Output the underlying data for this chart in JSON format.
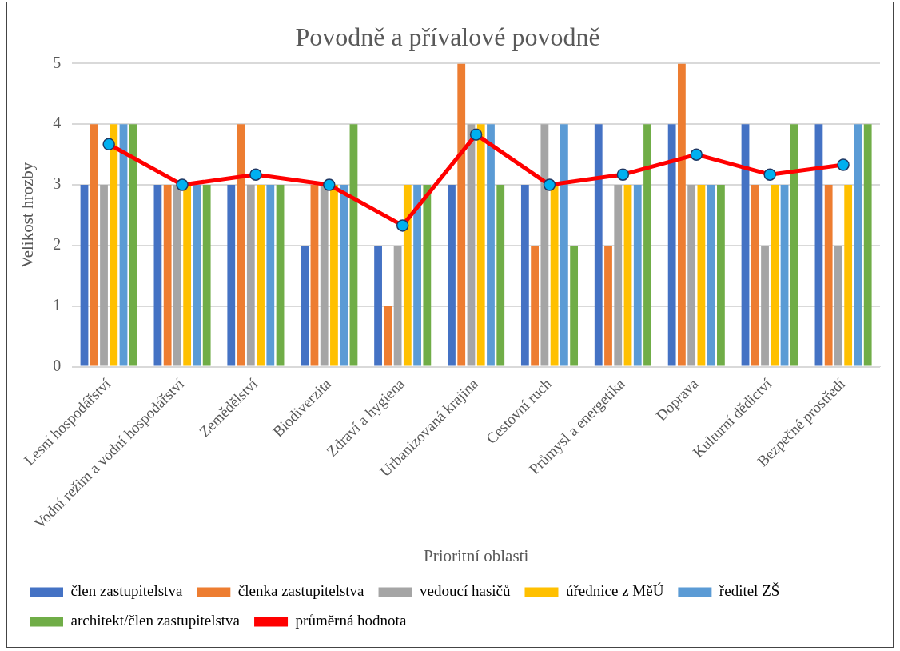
{
  "chart_data": {
    "type": "bar",
    "title": "Povodně a přívalové povodně",
    "xlabel": "Prioritní oblasti",
    "ylabel": "Velikost hrozby",
    "categories": [
      "Lesní hospodářství",
      "Vodní režim a vodní hospodářství",
      "Zemědělství",
      "Biodiverzita",
      "Zdraví a hygiena",
      "Urbanizovaná krajina",
      "Cestovní ruch",
      "Průmysl a energetika",
      "Doprava",
      "Kulturní dědictví",
      "Bezpečné prostředí"
    ],
    "series": [
      {
        "name": "člen zastupitelstva",
        "color": "#4472c4",
        "values": [
          3,
          3,
          3,
          2,
          2,
          3,
          3,
          4,
          4,
          4,
          4
        ]
      },
      {
        "name": "členka zastupitelstva",
        "color": "#ed7d31",
        "values": [
          4,
          3,
          4,
          3,
          1,
          5,
          2,
          2,
          5,
          3,
          3
        ]
      },
      {
        "name": "vedoucí hasičů",
        "color": "#a5a5a5",
        "values": [
          3,
          3,
          3,
          3,
          2,
          4,
          4,
          3,
          3,
          2,
          2
        ]
      },
      {
        "name": "úřednice z MěÚ",
        "color": "#ffc000",
        "values": [
          4,
          3,
          3,
          3,
          3,
          4,
          3,
          3,
          3,
          3,
          3
        ]
      },
      {
        "name": "ředitel ZŠ",
        "color": "#5b9bd5",
        "values": [
          4,
          3,
          3,
          3,
          3,
          4,
          4,
          3,
          3,
          3,
          4
        ]
      },
      {
        "name": "architekt/člen zastupitelstva",
        "color": "#70ad47",
        "values": [
          4,
          3,
          3,
          4,
          3,
          3,
          2,
          4,
          3,
          4,
          4
        ]
      },
      {
        "name": "průměrná hodnota",
        "type": "line",
        "color": "#ff0000",
        "marker": "circle",
        "values": [
          3.67,
          3,
          3.17,
          3,
          2.33,
          3.83,
          3,
          3.17,
          3.5,
          3.17,
          3.33
        ]
      }
    ],
    "ylim": [
      0,
      5
    ],
    "yticks": [
      0,
      1,
      2,
      3,
      4,
      5
    ],
    "grid": "y",
    "legend": "bottom"
  }
}
